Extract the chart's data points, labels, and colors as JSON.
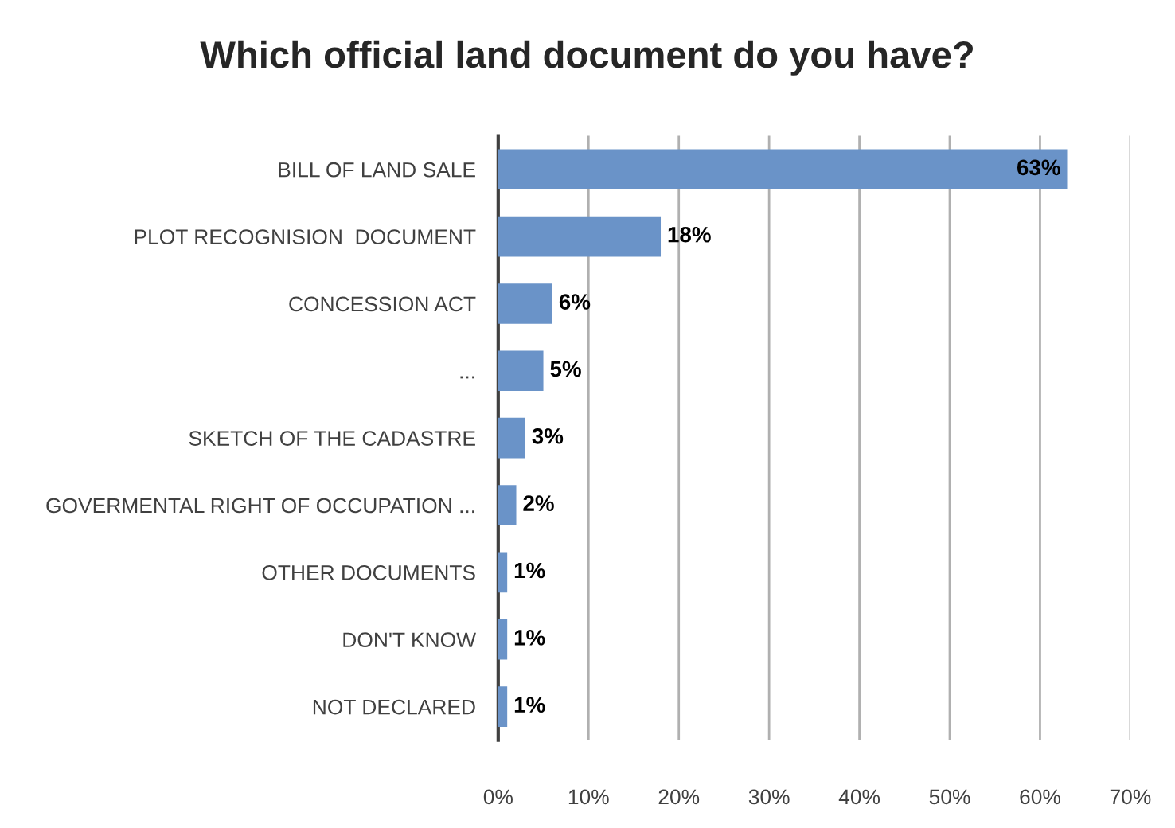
{
  "chart_data": {
    "type": "bar",
    "orientation": "horizontal",
    "title": "Which official land document do you have?",
    "categories": [
      "BILL OF LAND SALE",
      "PLOT RECOGNISION  DOCUMENT",
      "CONCESSION ACT",
      "...",
      "SKETCH OF THE CADASTRE",
      "GOVERMENTAL RIGHT OF OCCUPATION ...",
      "OTHER DOCUMENTS",
      "DON'T KNOW",
      "NOT DECLARED"
    ],
    "values": [
      63,
      18,
      6,
      5,
      3,
      2,
      1,
      1,
      1
    ],
    "value_labels": [
      "63%",
      "18%",
      "6%",
      "5%",
      "3%",
      "2%",
      "1%",
      "1%",
      "1%"
    ],
    "color": "#6a93c8",
    "xlim": [
      0,
      70
    ],
    "xticks": [
      {
        "value": 0,
        "label": "0%"
      },
      {
        "value": 10,
        "label": "10%"
      },
      {
        "value": 20,
        "label": "20%"
      },
      {
        "value": 30,
        "label": "30%"
      },
      {
        "value": 40,
        "label": "40%"
      },
      {
        "value": 50,
        "label": "50%"
      },
      {
        "value": 60,
        "label": "60%"
      },
      {
        "value": 70,
        "label": "70%"
      }
    ],
    "grid": "x"
  }
}
